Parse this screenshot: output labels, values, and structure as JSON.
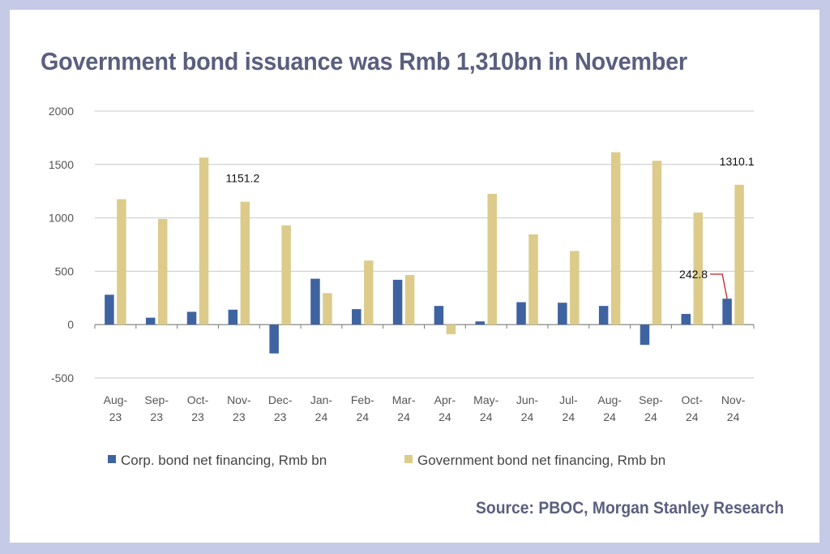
{
  "title": "Government bond issuance was Rmb 1,310bn in November",
  "source": "Source: PBOC, Morgan Stanley Research",
  "colors": {
    "background": "#c5cae6",
    "corp": "#3e63a0",
    "gov": "#dccb8a",
    "text": "#5a5f7e",
    "grid": "#c8c8c8",
    "callout": "#c0202a"
  },
  "chart_data": {
    "type": "bar",
    "categories": [
      [
        "Aug-",
        "23"
      ],
      [
        "Sep-",
        "23"
      ],
      [
        "Oct-",
        "23"
      ],
      [
        "Nov-",
        "23"
      ],
      [
        "Dec-",
        "23"
      ],
      [
        "Jan-",
        "24"
      ],
      [
        "Feb-",
        "24"
      ],
      [
        "Mar-",
        "24"
      ],
      [
        "Apr-",
        "24"
      ],
      [
        "May-",
        "24"
      ],
      [
        "Jun-",
        "24"
      ],
      [
        "Jul-",
        "24"
      ],
      [
        "Aug-",
        "24"
      ],
      [
        "Sep-",
        "24"
      ],
      [
        "Oct-",
        "24"
      ],
      [
        "Nov-",
        "24"
      ]
    ],
    "series": [
      {
        "name": "Corp. bond net financing,  Rmb bn",
        "values": [
          280,
          65,
          120,
          140,
          -270,
          430,
          145,
          420,
          175,
          30,
          210,
          205,
          175,
          -190,
          100,
          242.8
        ]
      },
      {
        "name": "Government bond net financing,  Rmb bn",
        "values": [
          1175,
          990,
          1565,
          1151.2,
          930,
          295,
          600,
          465,
          -90,
          1225,
          845,
          690,
          1615,
          1535,
          1050,
          1310.1
        ]
      }
    ],
    "ylim": [
      -500,
      2000
    ],
    "yticks": [
      2000,
      1500,
      1000,
      500,
      0,
      -500
    ],
    "grid": true,
    "legend_position": "bottom",
    "annotations": [
      {
        "text": "1151.2",
        "series": 1,
        "index": 3
      },
      {
        "text": "1310.1",
        "series": 1,
        "index": 15
      },
      {
        "text": "242.8",
        "series": 0,
        "index": 15,
        "callout": true
      }
    ]
  }
}
